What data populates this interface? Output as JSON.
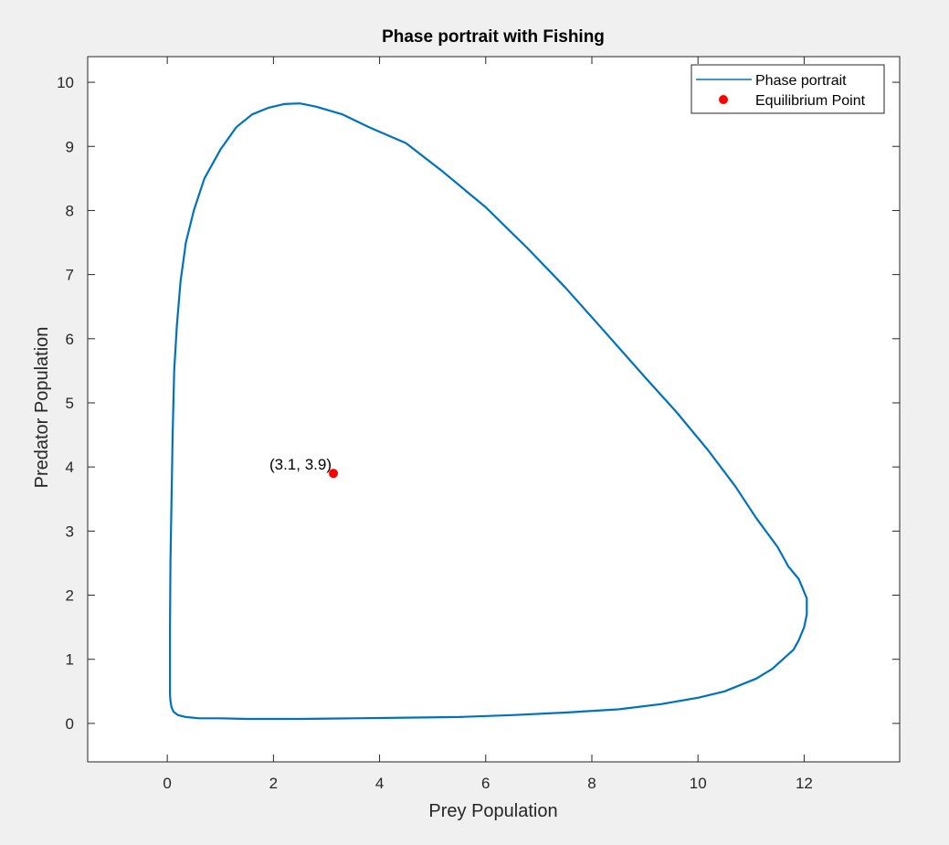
{
  "chart_data": {
    "type": "line",
    "title": "Phase portrait with Fishing",
    "xlabel": "Prey Population",
    "ylabel": "Predator Population",
    "xlim": [
      -1.5,
      13.8
    ],
    "ylim": [
      -0.6,
      10.4
    ],
    "xticks": [
      0,
      2,
      4,
      6,
      8,
      10,
      12
    ],
    "yticks": [
      0,
      1,
      2,
      3,
      4,
      5,
      6,
      7,
      8,
      9,
      10
    ],
    "grid": false,
    "legend_placement": "top-right",
    "series": [
      {
        "name": "Phase portrait",
        "color": "#0072bd",
        "x": [
          0.05,
          0.05,
          0.06,
          0.08,
          0.1,
          0.13,
          0.18,
          0.25,
          0.35,
          0.5,
          0.7,
          1.0,
          1.3,
          1.6,
          1.9,
          2.2,
          2.5,
          2.8,
          3.3,
          3.8,
          4.5,
          5.2,
          6.0,
          6.8,
          7.5,
          8.2,
          9.0,
          9.6,
          10.2,
          10.7,
          11.1,
          11.5,
          11.7,
          11.9,
          12.05,
          12.05,
          12.0,
          11.9,
          11.8,
          11.6,
          11.4,
          11.1,
          10.8,
          10.5,
          10.0,
          9.3,
          8.5,
          7.5,
          6.5,
          5.5,
          4.5,
          3.5,
          2.5,
          1.5,
          1.0,
          0.6,
          0.35,
          0.2,
          0.12,
          0.08,
          0.06,
          0.05,
          0.05
        ],
        "y": [
          0.5,
          1.5,
          2.5,
          3.5,
          4.5,
          5.5,
          6.2,
          6.9,
          7.5,
          8.0,
          8.5,
          8.95,
          9.3,
          9.5,
          9.6,
          9.66,
          9.67,
          9.62,
          9.5,
          9.3,
          9.05,
          8.6,
          8.05,
          7.4,
          6.8,
          6.15,
          5.4,
          4.85,
          4.25,
          3.7,
          3.2,
          2.75,
          2.45,
          2.25,
          1.95,
          1.7,
          1.5,
          1.3,
          1.15,
          1.0,
          0.85,
          0.7,
          0.6,
          0.5,
          0.4,
          0.3,
          0.22,
          0.17,
          0.13,
          0.1,
          0.09,
          0.08,
          0.07,
          0.07,
          0.08,
          0.08,
          0.1,
          0.13,
          0.18,
          0.25,
          0.35,
          0.45,
          0.5
        ]
      },
      {
        "name": "Equilibrium Point",
        "type": "scatter",
        "color": "#ff0000",
        "x": [
          3.13
        ],
        "y": [
          3.9
        ]
      }
    ],
    "annotations": [
      {
        "text": "(3.1, 3.9)",
        "x": 3.13,
        "y": 3.9
      }
    ]
  }
}
